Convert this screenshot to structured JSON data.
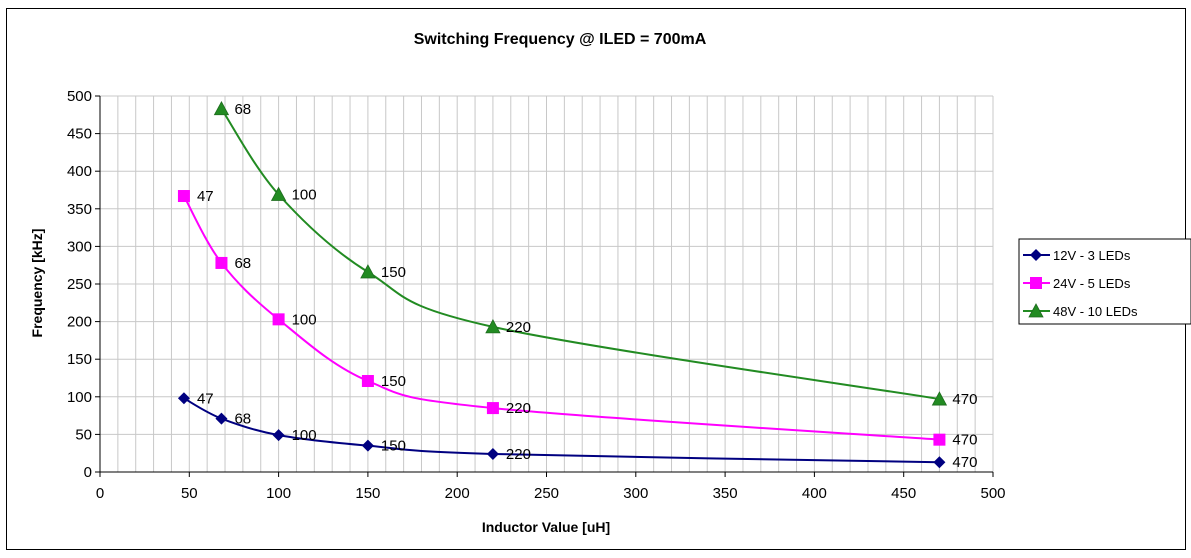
{
  "chart_data": {
    "type": "line",
    "title": "Switching Frequency @ ILED = 700mA",
    "xlabel": "Inductor Value [uH]",
    "ylabel": "Frequency [kHz]",
    "xlim": [
      0,
      500
    ],
    "ylim": [
      0,
      500
    ],
    "x_ticks": [
      0,
      50,
      100,
      150,
      200,
      250,
      300,
      350,
      400,
      450,
      500
    ],
    "y_ticks": [
      0,
      50,
      100,
      150,
      200,
      250,
      300,
      350,
      400,
      450,
      500
    ],
    "grid": "vertical and horizontal",
    "legend_position": "right",
    "series": [
      {
        "name": "12V - 3 LEDs",
        "color": "#000080",
        "marker": "diamond",
        "points": [
          {
            "x": 47,
            "y": 98,
            "label": "47"
          },
          {
            "x": 68,
            "y": 71,
            "label": "68"
          },
          {
            "x": 100,
            "y": 49,
            "label": "100"
          },
          {
            "x": 150,
            "y": 35,
            "label": "150"
          },
          {
            "x": 220,
            "y": 24,
            "label": "220"
          },
          {
            "x": 470,
            "y": 13,
            "label": "470"
          }
        ]
      },
      {
        "name": "24V - 5 LEDs",
        "color": "#ff00ff",
        "marker": "square",
        "points": [
          {
            "x": 47,
            "y": 367,
            "label": "47"
          },
          {
            "x": 68,
            "y": 278,
            "label": "68"
          },
          {
            "x": 100,
            "y": 203,
            "label": "100"
          },
          {
            "x": 150,
            "y": 121,
            "label": "150"
          },
          {
            "x": 220,
            "y": 85,
            "label": "220"
          },
          {
            "x": 470,
            "y": 43,
            "label": "470"
          }
        ]
      },
      {
        "name": "48V - 10 LEDs",
        "color": "#228b22",
        "marker": "triangle",
        "points": [
          {
            "x": 68,
            "y": 483,
            "label": "68"
          },
          {
            "x": 100,
            "y": 369,
            "label": "100"
          },
          {
            "x": 150,
            "y": 266,
            "label": "150"
          },
          {
            "x": 220,
            "y": 193,
            "label": "220"
          },
          {
            "x": 470,
            "y": 97,
            "label": "470"
          }
        ]
      }
    ]
  }
}
